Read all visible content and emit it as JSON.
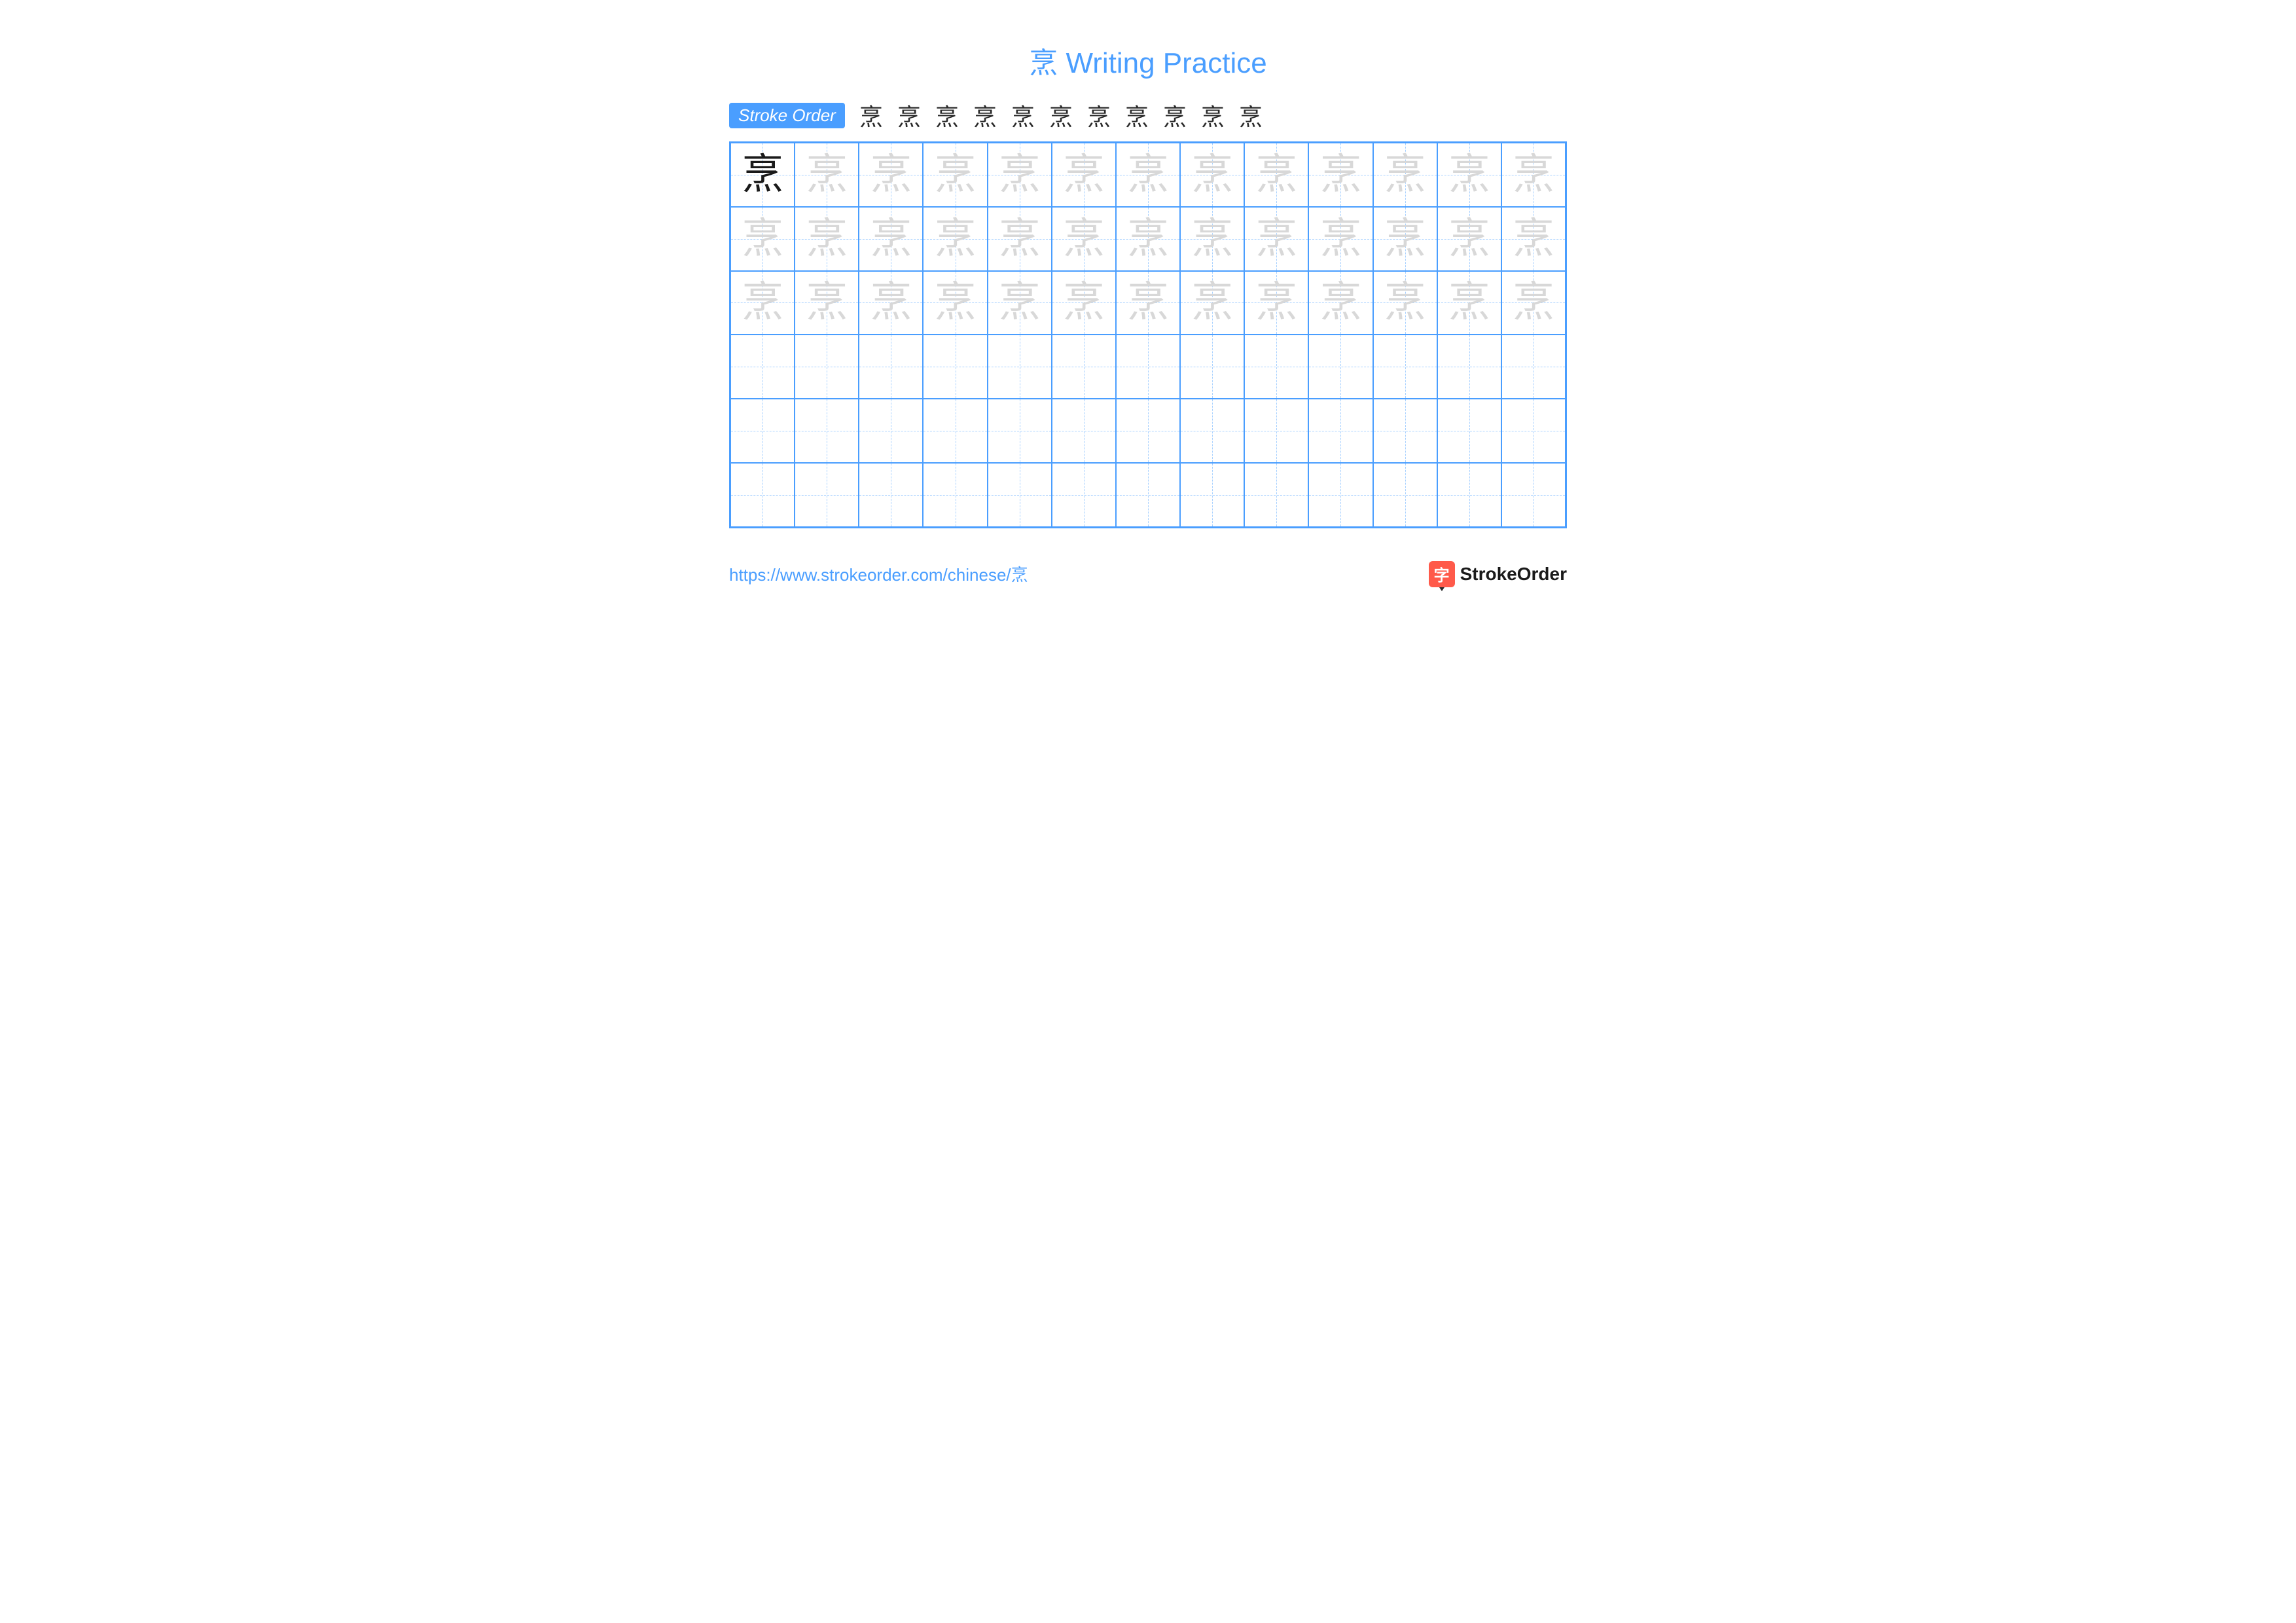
{
  "title": "烹 Writing Practice",
  "stroke_order_label": "Stroke Order",
  "character": "烹",
  "stroke_count": 11,
  "grid": {
    "columns": 13,
    "rows": 6,
    "trace_rows": 3,
    "empty_rows": 3,
    "dark_cell": {
      "row": 0,
      "col": 0
    },
    "border_color": "#4a9eff",
    "guide_color": "#a8d1ff",
    "trace_color": "#d8d8d8",
    "dark_color": "#1a1a1a"
  },
  "colors": {
    "accent": "#4a9eff",
    "text": "#1a1a1a",
    "light": "#d8d8d8",
    "logo_bg": "#ff5a4a",
    "background": "#ffffff"
  },
  "footer_url": "https://www.strokeorder.com/chinese/烹",
  "logo_char": "字",
  "logo_text": "StrokeOrder",
  "typography": {
    "title_fontsize": 44,
    "char_fontsize": 64,
    "badge_fontsize": 26,
    "url_fontsize": 26,
    "logo_fontsize": 28
  }
}
